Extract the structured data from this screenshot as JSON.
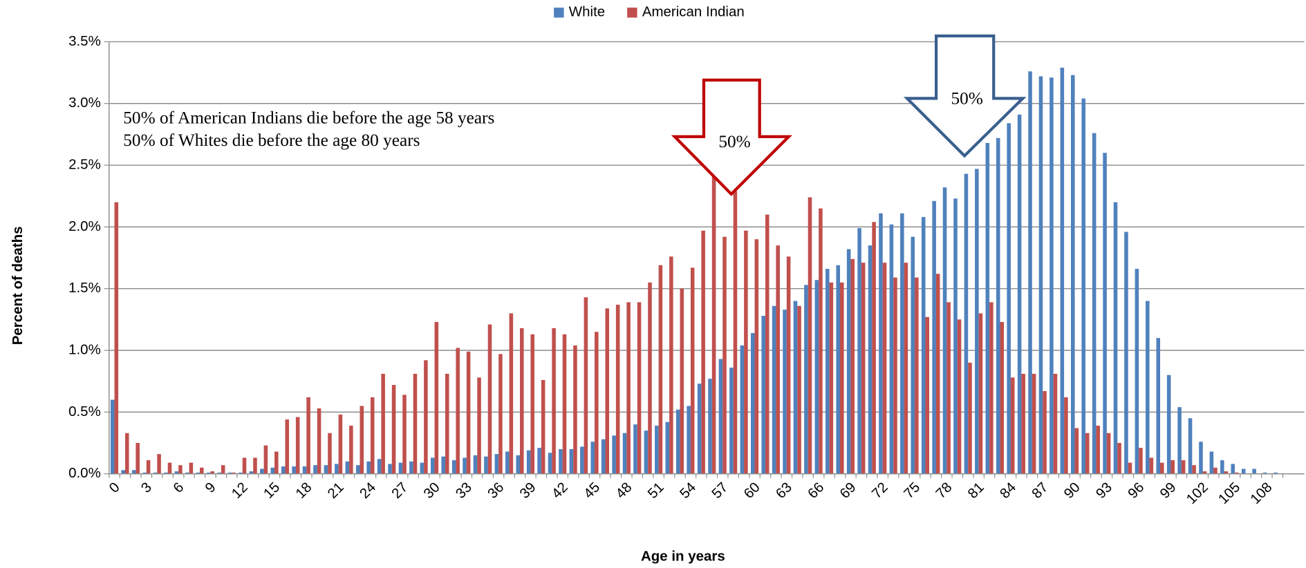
{
  "chart_data": {
    "type": "bar",
    "legend": "top",
    "grid": true,
    "xlabel": "Age in years",
    "ylabel": "Percent of deaths",
    "annotations": [
      "50% of American Indians die before the age 58 years",
      "50% of Whites die before the age 80 years",
      "50%",
      "50%"
    ],
    "categories": [
      "0",
      null,
      null,
      "3",
      null,
      null,
      "6",
      null,
      null,
      "9",
      null,
      null,
      "12",
      null,
      null,
      "15",
      null,
      null,
      "18",
      null,
      null,
      "21",
      null,
      null,
      "24",
      null,
      null,
      "27",
      null,
      null,
      "30",
      null,
      null,
      "33",
      null,
      null,
      "36",
      null,
      null,
      "39",
      null,
      null,
      "42",
      null,
      null,
      "45",
      null,
      null,
      "48",
      null,
      null,
      "51",
      null,
      null,
      "54",
      null,
      null,
      "57",
      null,
      null,
      "60",
      null,
      null,
      "63",
      null,
      null,
      "66",
      null,
      null,
      "69",
      null,
      null,
      "72",
      null,
      null,
      "75",
      null,
      null,
      "78",
      null,
      null,
      "81",
      null,
      null,
      "84",
      null,
      null,
      "87",
      null,
      null,
      "90",
      null,
      null,
      "93",
      null,
      null,
      "96",
      null,
      null,
      "99",
      null,
      null,
      "102",
      null,
      null,
      "105",
      null,
      null,
      "108",
      null,
      null
    ],
    "ylim": [
      0,
      3.5
    ],
    "yticks": [
      {
        "value": 0,
        "label": "0.0%"
      },
      {
        "value": 0.5,
        "label": "0.5%"
      },
      {
        "value": 1,
        "label": "1.0%"
      },
      {
        "value": 1.5,
        "label": "1.5%"
      },
      {
        "value": 2,
        "label": "2.0%"
      },
      {
        "value": 2.5,
        "label": "2.5%"
      },
      {
        "value": 3,
        "label": "3.0%"
      },
      {
        "value": 3.5,
        "label": "3.5%"
      }
    ],
    "series": [
      {
        "name": "White",
        "color": "#4f81bd",
        "values": [
          0.6,
          0.03,
          0.03,
          0.01,
          0.01,
          0.01,
          0.02,
          0.01,
          0.01,
          0.01,
          0.01,
          0.01,
          0.01,
          0.02,
          0.04,
          0.05,
          0.06,
          0.06,
          0.06,
          0.07,
          0.07,
          0.08,
          0.1,
          0.07,
          0.1,
          0.12,
          0.08,
          0.09,
          0.1,
          0.09,
          0.13,
          0.14,
          0.11,
          0.13,
          0.15,
          0.14,
          0.16,
          0.18,
          0.15,
          0.19,
          0.21,
          0.17,
          0.2,
          0.2,
          0.22,
          0.26,
          0.28,
          0.31,
          0.33,
          0.4,
          0.35,
          0.39,
          0.42,
          0.52,
          0.55,
          0.73,
          0.77,
          0.93,
          0.86,
          1.04,
          1.14,
          1.28,
          1.36,
          1.33,
          1.4,
          1.53,
          1.57,
          1.66,
          1.69,
          1.82,
          1.99,
          1.85,
          2.11,
          2.02,
          2.11,
          1.92,
          2.08,
          2.21,
          2.32,
          2.23,
          2.43,
          2.47,
          2.68,
          2.72,
          2.84,
          2.91,
          3.26,
          3.22,
          3.21,
          3.29,
          3.23,
          3.04,
          2.76,
          2.6,
          2.2,
          1.96,
          1.66,
          1.4,
          1.1,
          0.8,
          0.54,
          0.45,
          0.26,
          0.18,
          0.11,
          0.08,
          0.04,
          0.04,
          0.01,
          0.01,
          0
        ]
      },
      {
        "name": "American Indian",
        "color": "#c0504d",
        "values": [
          2.2,
          0.33,
          0.25,
          0.11,
          0.16,
          0.09,
          0.07,
          0.09,
          0.05,
          0.02,
          0.07,
          0.01,
          0.13,
          0.13,
          0.23,
          0.18,
          0.44,
          0.46,
          0.62,
          0.53,
          0.33,
          0.48,
          0.39,
          0.55,
          0.62,
          0.81,
          0.72,
          0.64,
          0.81,
          0.92,
          1.23,
          0.81,
          1.02,
          0.99,
          0.78,
          1.21,
          0.97,
          1.3,
          1.18,
          1.13,
          0.76,
          1.18,
          1.13,
          1.04,
          1.43,
          1.15,
          1.34,
          1.37,
          1.39,
          1.39,
          1.55,
          1.69,
          1.76,
          1.5,
          1.67,
          1.97,
          2.42,
          1.92,
          2.29,
          1.97,
          1.9,
          2.1,
          1.85,
          1.76,
          1.36,
          2.24,
          2.15,
          1.55,
          1.55,
          1.74,
          1.71,
          2.04,
          1.71,
          1.59,
          1.71,
          1.59,
          1.27,
          1.62,
          1.39,
          1.25,
          0.9,
          1.3,
          1.39,
          1.23,
          0.78,
          0.81,
          0.81,
          0.67,
          0.81,
          0.62,
          0.37,
          0.33,
          0.39,
          0.33,
          0.25,
          0.09,
          0.21,
          0.13,
          0.09,
          0.11,
          0.11,
          0.07,
          0.02,
          0.05,
          0.02,
          0.01,
          0,
          0,
          0,
          0,
          0
        ]
      }
    ]
  }
}
